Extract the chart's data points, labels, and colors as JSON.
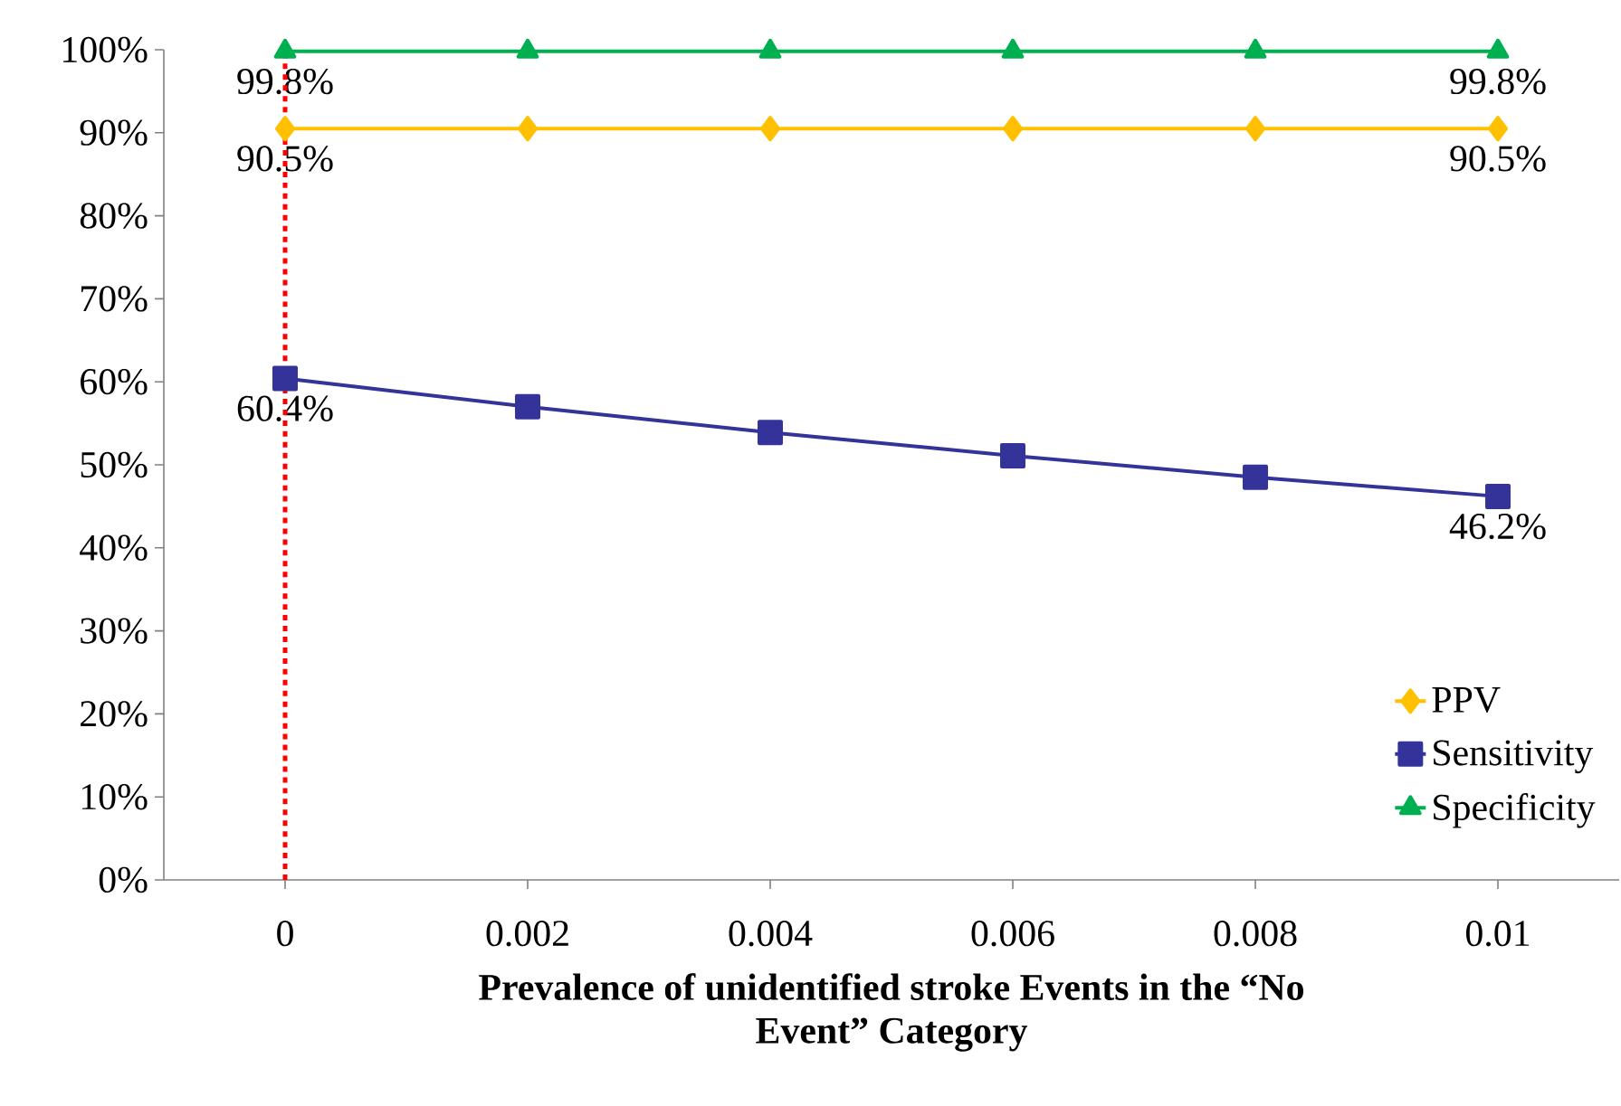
{
  "chart_data": {
    "type": "line",
    "xlabel": "Prevalence of unidentified stroke Events in the “No Event” Category",
    "x": [
      0,
      0.002,
      0.004,
      0.006,
      0.008,
      0.01
    ],
    "xlim": [
      -0.001,
      0.011
    ],
    "xticks": [
      0,
      0.002,
      0.004,
      0.006,
      0.008,
      0.01
    ],
    "ylim": [
      0,
      100
    ],
    "yticks": [
      {
        "value": 0,
        "label": "0%"
      },
      {
        "value": 10,
        "label": "10%"
      },
      {
        "value": 20,
        "label": "20%"
      },
      {
        "value": 30,
        "label": "30%"
      },
      {
        "value": 40,
        "label": "40%"
      },
      {
        "value": 50,
        "label": "50%"
      },
      {
        "value": 60,
        "label": "60%"
      },
      {
        "value": 70,
        "label": "70%"
      },
      {
        "value": 80,
        "label": "80%"
      },
      {
        "value": 90,
        "label": "90%"
      },
      {
        "value": 100,
        "label": "100%"
      }
    ],
    "series": [
      {
        "name": "PPV",
        "color": "#ffc000",
        "marker": "diamond",
        "values": [
          90.5,
          90.5,
          90.5,
          90.5,
          90.5,
          90.5
        ],
        "value_labels": [
          "90.5%",
          null,
          null,
          null,
          null,
          "90.5%"
        ]
      },
      {
        "name": "Sensitivity",
        "color": "#333399",
        "marker": "square",
        "values": [
          60.4,
          57.0,
          53.9,
          51.1,
          48.5,
          46.2
        ],
        "value_labels": [
          "60.4%",
          null,
          null,
          null,
          null,
          "46.2%"
        ]
      },
      {
        "name": "Specificity",
        "color": "#00b050",
        "marker": "triangle",
        "values": [
          99.8,
          99.8,
          99.8,
          99.8,
          99.8,
          99.8
        ],
        "value_labels": [
          "99.8%",
          null,
          null,
          null,
          null,
          "99.8%"
        ]
      }
    ],
    "ref_lines": [
      {
        "axis": "x",
        "value": 0,
        "color": "#ff0000",
        "line_style": "dashed"
      }
    ],
    "legend": "bottom right",
    "grid": false
  }
}
